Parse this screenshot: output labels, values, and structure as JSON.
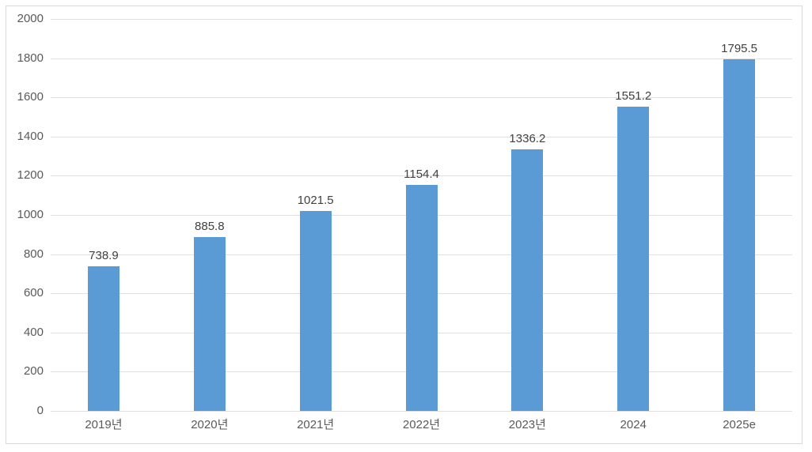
{
  "chart_data": {
    "type": "bar",
    "categories": [
      "2019년",
      "2020년",
      "2021년",
      "2022년",
      "2023년",
      "2024",
      "2025e"
    ],
    "values": [
      738.9,
      885.8,
      1021.5,
      1154.4,
      1336.2,
      1551.2,
      1795.5
    ],
    "data_labels": [
      "738.9",
      "885.8",
      "1021.5",
      "1154.4",
      "1336.2",
      "1551.2",
      "1795.5"
    ],
    "title": "",
    "xlabel": "",
    "ylabel": "",
    "ylim": [
      0,
      2000
    ],
    "ytick_step": 200,
    "ytick_labels": [
      "0",
      "200",
      "400",
      "600",
      "800",
      "1000",
      "1200",
      "1400",
      "1600",
      "1800",
      "2000"
    ],
    "grid": true,
    "legend": "none",
    "colors": {
      "bar": "#5B9BD5",
      "gridline": "#E0E0E0",
      "frame_border": "#D9D9D9",
      "axis_tick_text": "#595959",
      "data_label_text": "#404040",
      "background": "#FFFFFF"
    }
  }
}
